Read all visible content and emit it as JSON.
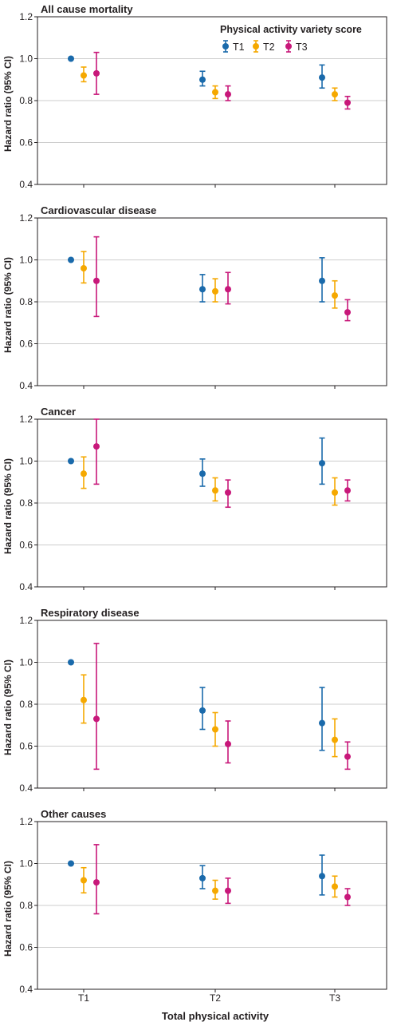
{
  "colors": {
    "T1": "#1a6aab",
    "T2": "#f5a800",
    "T3": "#c8187a"
  },
  "legend": {
    "title": "Physical activity variety score",
    "items": [
      "T1",
      "T2",
      "T3"
    ]
  },
  "shared": {
    "xlabel": "Total physical activity",
    "ylabel": "Hazard ratio (95% CI)",
    "categories": [
      "T1",
      "T2",
      "T3"
    ],
    "yticks": [
      "0.4",
      "0.6",
      "0.8",
      "1.0",
      "1.2"
    ]
  },
  "chart_data": [
    {
      "type": "scatter",
      "title": "All cause mortality",
      "categories": [
        "T1",
        "T2",
        "T3"
      ],
      "ylim": [
        0.4,
        1.2
      ],
      "grid": true,
      "series": [
        {
          "name": "T1",
          "values": [
            1.0,
            0.9,
            0.91
          ],
          "lower": [
            1.0,
            0.87,
            0.86
          ],
          "upper": [
            1.0,
            0.94,
            0.97
          ]
        },
        {
          "name": "T2",
          "values": [
            0.92,
            0.84,
            0.83
          ],
          "lower": [
            0.89,
            0.81,
            0.8
          ],
          "upper": [
            0.96,
            0.87,
            0.86
          ]
        },
        {
          "name": "T3",
          "values": [
            0.93,
            0.83,
            0.79
          ],
          "lower": [
            0.83,
            0.8,
            0.76
          ],
          "upper": [
            1.03,
            0.87,
            0.82
          ]
        }
      ]
    },
    {
      "type": "scatter",
      "title": "Cardiovascular disease",
      "categories": [
        "T1",
        "T2",
        "T3"
      ],
      "ylim": [
        0.4,
        1.2
      ],
      "grid": true,
      "series": [
        {
          "name": "T1",
          "values": [
            1.0,
            0.86,
            0.9
          ],
          "lower": [
            1.0,
            0.8,
            0.8
          ],
          "upper": [
            1.0,
            0.93,
            1.01
          ]
        },
        {
          "name": "T2",
          "values": [
            0.96,
            0.85,
            0.83
          ],
          "lower": [
            0.89,
            0.8,
            0.77
          ],
          "upper": [
            1.04,
            0.91,
            0.9
          ]
        },
        {
          "name": "T3",
          "values": [
            0.9,
            0.86,
            0.75
          ],
          "lower": [
            0.73,
            0.79,
            0.71
          ],
          "upper": [
            1.11,
            0.94,
            0.81
          ]
        }
      ]
    },
    {
      "type": "scatter",
      "title": "Cancer",
      "categories": [
        "T1",
        "T2",
        "T3"
      ],
      "ylim": [
        0.4,
        1.2
      ],
      "grid": true,
      "series": [
        {
          "name": "T1",
          "values": [
            1.0,
            0.94,
            0.99
          ],
          "lower": [
            1.0,
            0.88,
            0.89
          ],
          "upper": [
            1.0,
            1.01,
            1.11
          ]
        },
        {
          "name": "T2",
          "values": [
            0.94,
            0.86,
            0.85
          ],
          "lower": [
            0.87,
            0.81,
            0.79
          ],
          "upper": [
            1.02,
            0.92,
            0.92
          ]
        },
        {
          "name": "T3",
          "values": [
            1.07,
            0.85,
            0.86
          ],
          "lower": [
            0.89,
            0.78,
            0.81
          ],
          "upper": [
            1.2,
            0.91,
            0.91
          ]
        }
      ]
    },
    {
      "type": "scatter",
      "title": "Respiratory disease",
      "categories": [
        "T1",
        "T2",
        "T3"
      ],
      "ylim": [
        0.4,
        1.2
      ],
      "grid": true,
      "series": [
        {
          "name": "T1",
          "values": [
            1.0,
            0.77,
            0.71
          ],
          "lower": [
            1.0,
            0.68,
            0.58
          ],
          "upper": [
            1.0,
            0.88,
            0.88
          ]
        },
        {
          "name": "T2",
          "values": [
            0.82,
            0.68,
            0.63
          ],
          "lower": [
            0.71,
            0.6,
            0.55
          ],
          "upper": [
            0.94,
            0.76,
            0.73
          ]
        },
        {
          "name": "T3",
          "values": [
            0.73,
            0.61,
            0.55
          ],
          "lower": [
            0.49,
            0.52,
            0.49
          ],
          "upper": [
            1.09,
            0.72,
            0.62
          ]
        }
      ]
    },
    {
      "type": "scatter",
      "title": "Other causes",
      "categories": [
        "T1",
        "T2",
        "T3"
      ],
      "ylim": [
        0.4,
        1.2
      ],
      "grid": true,
      "series": [
        {
          "name": "T1",
          "values": [
            1.0,
            0.93,
            0.94
          ],
          "lower": [
            1.0,
            0.88,
            0.85
          ],
          "upper": [
            1.0,
            0.99,
            1.04
          ]
        },
        {
          "name": "T2",
          "values": [
            0.92,
            0.87,
            0.89
          ],
          "lower": [
            0.86,
            0.83,
            0.84
          ],
          "upper": [
            0.98,
            0.92,
            0.94
          ]
        },
        {
          "name": "T3",
          "values": [
            0.91,
            0.87,
            0.84
          ],
          "lower": [
            0.76,
            0.81,
            0.8
          ],
          "upper": [
            1.09,
            0.93,
            0.88
          ]
        }
      ]
    }
  ]
}
